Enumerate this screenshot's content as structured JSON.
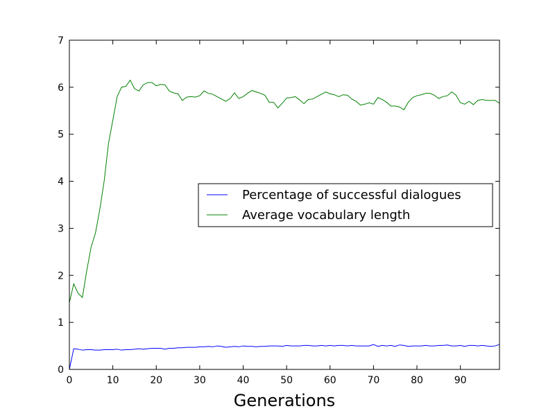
{
  "chart_data": {
    "type": "line",
    "xlabel": "Generations",
    "ylabel": "",
    "xlim": [
      0,
      99
    ],
    "ylim": [
      0,
      7
    ],
    "xticks": [
      0,
      10,
      20,
      30,
      40,
      50,
      60,
      70,
      80,
      90
    ],
    "yticks": [
      0,
      1,
      2,
      3,
      4,
      5,
      6,
      7
    ],
    "grid": false,
    "legend_position": "center-right",
    "series": [
      {
        "name": "Percentage of successful dialogues",
        "color": "#0000ff",
        "values": [
          0.0,
          0.44,
          0.43,
          0.41,
          0.42,
          0.42,
          0.41,
          0.41,
          0.42,
          0.42,
          0.42,
          0.43,
          0.41,
          0.42,
          0.42,
          0.43,
          0.44,
          0.43,
          0.44,
          0.45,
          0.45,
          0.45,
          0.43,
          0.45,
          0.45,
          0.46,
          0.46,
          0.47,
          0.47,
          0.47,
          0.48,
          0.48,
          0.49,
          0.48,
          0.5,
          0.49,
          0.47,
          0.48,
          0.49,
          0.48,
          0.5,
          0.49,
          0.49,
          0.48,
          0.49,
          0.49,
          0.5,
          0.5,
          0.5,
          0.49,
          0.51,
          0.5,
          0.5,
          0.5,
          0.51,
          0.51,
          0.5,
          0.5,
          0.51,
          0.5,
          0.51,
          0.5,
          0.51,
          0.51,
          0.5,
          0.51,
          0.5,
          0.5,
          0.5,
          0.5,
          0.53,
          0.49,
          0.51,
          0.5,
          0.51,
          0.49,
          0.52,
          0.51,
          0.49,
          0.5,
          0.5,
          0.5,
          0.51,
          0.5,
          0.5,
          0.51,
          0.51,
          0.52,
          0.5,
          0.5,
          0.51,
          0.49,
          0.51,
          0.51,
          0.5,
          0.51,
          0.5,
          0.49,
          0.5,
          0.53
        ]
      },
      {
        "name": "Average vocabulary length",
        "color": "#008000",
        "values": [
          1.42,
          1.82,
          1.62,
          1.53,
          2.1,
          2.6,
          2.9,
          3.4,
          4.0,
          4.8,
          5.3,
          5.8,
          6.0,
          6.02,
          6.15,
          5.97,
          5.92,
          6.05,
          6.1,
          6.1,
          6.03,
          6.06,
          6.05,
          5.92,
          5.88,
          5.86,
          5.72,
          5.79,
          5.8,
          5.79,
          5.82,
          5.92,
          5.87,
          5.85,
          5.8,
          5.75,
          5.7,
          5.76,
          5.88,
          5.76,
          5.8,
          5.87,
          5.93,
          5.9,
          5.87,
          5.83,
          5.68,
          5.68,
          5.56,
          5.66,
          5.77,
          5.78,
          5.8,
          5.73,
          5.65,
          5.74,
          5.75,
          5.8,
          5.85,
          5.9,
          5.86,
          5.84,
          5.8,
          5.84,
          5.83,
          5.75,
          5.7,
          5.62,
          5.64,
          5.67,
          5.64,
          5.78,
          5.74,
          5.68,
          5.6,
          5.6,
          5.58,
          5.52,
          5.68,
          5.78,
          5.82,
          5.84,
          5.87,
          5.87,
          5.83,
          5.76,
          5.8,
          5.82,
          5.9,
          5.83,
          5.67,
          5.64,
          5.7,
          5.63,
          5.72,
          5.74,
          5.72,
          5.72,
          5.72,
          5.66
        ]
      }
    ]
  }
}
